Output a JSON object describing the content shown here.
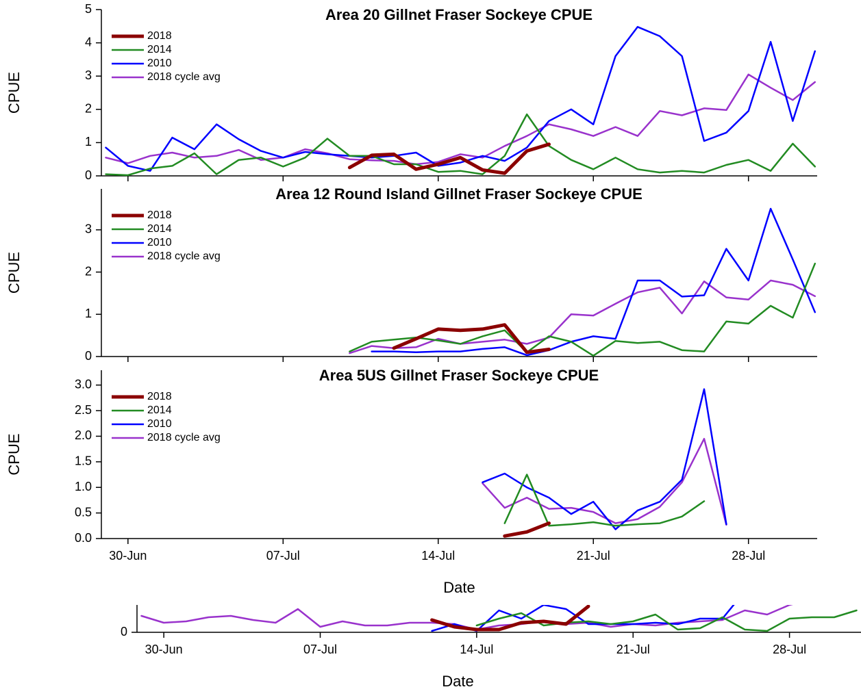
{
  "chart_data": [
    {
      "type": "line",
      "title": "Area 20 Gillnet Fraser Sockeye CPUE",
      "ylabel": "CPUE",
      "legend": "upper left",
      "x": [
        180,
        181,
        182,
        183,
        184,
        185,
        186,
        187,
        188,
        189,
        190,
        191,
        192,
        193,
        194,
        195,
        196,
        197,
        198,
        199,
        200,
        201,
        202,
        203,
        204,
        205,
        206,
        207,
        208,
        209,
        210,
        211,
        212
      ],
      "xlim": [
        179.8,
        212.1
      ],
      "xticks": [
        181,
        188,
        195,
        202,
        209
      ],
      "ylim": [
        0,
        5
      ],
      "yticks": [
        0,
        1,
        2,
        3,
        4,
        5
      ],
      "series": [
        {
          "name": "2018",
          "color": "#8b0000",
          "linewidth": 5,
          "values": [
            null,
            null,
            null,
            null,
            null,
            null,
            null,
            null,
            null,
            null,
            null,
            0.25,
            0.62,
            0.65,
            0.2,
            0.35,
            0.55,
            0.18,
            0.08,
            0.75,
            0.95,
            null,
            null,
            null,
            null,
            null,
            null,
            null,
            null,
            null,
            null,
            null,
            null
          ]
        },
        {
          "name": "2014",
          "color": "#228b22",
          "linewidth": 2.5,
          "values": [
            0.05,
            0.02,
            0.22,
            0.3,
            0.68,
            0.05,
            0.48,
            0.55,
            0.28,
            0.55,
            1.12,
            0.6,
            0.6,
            0.35,
            0.35,
            0.12,
            0.15,
            0.05,
            0.6,
            1.85,
            0.9,
            0.48,
            0.2,
            0.55,
            0.2,
            0.1,
            0.15,
            0.1,
            0.33,
            0.48,
            0.15,
            0.97,
            0.28
          ]
        },
        {
          "name": "2010",
          "color": "#0000ff",
          "linewidth": 2.5,
          "values": [
            0.85,
            0.3,
            0.15,
            1.15,
            0.8,
            1.55,
            1.1,
            0.75,
            0.55,
            0.72,
            0.65,
            0.6,
            0.55,
            0.6,
            0.7,
            0.3,
            0.4,
            0.6,
            0.45,
            0.85,
            1.65,
            2.0,
            1.55,
            3.6,
            4.48,
            4.2,
            3.6,
            1.05,
            1.3,
            1.95,
            4.03,
            1.65,
            3.75
          ]
        },
        {
          "name": "2018 cycle avg",
          "color": "#9932cc",
          "linewidth": 2.5,
          "values": [
            0.55,
            0.38,
            0.6,
            0.7,
            0.55,
            0.6,
            0.78,
            0.48,
            0.55,
            0.8,
            0.68,
            0.5,
            0.47,
            0.45,
            0.35,
            0.42,
            0.65,
            0.55,
            0.9,
            1.2,
            1.55,
            1.4,
            1.2,
            1.47,
            1.2,
            1.95,
            1.82,
            2.03,
            1.98,
            3.05,
            2.65,
            2.28,
            2.82
          ]
        }
      ]
    },
    {
      "type": "line",
      "title": "Area 12 Round Island Gillnet Fraser Sockeye CPUE",
      "ylabel": "CPUE",
      "legend": "upper left",
      "x": [
        180,
        181,
        182,
        183,
        184,
        185,
        186,
        187,
        188,
        189,
        190,
        191,
        192,
        193,
        194,
        195,
        196,
        197,
        198,
        199,
        200,
        201,
        202,
        203,
        204,
        205,
        206,
        207,
        208,
        209,
        210,
        211,
        212
      ],
      "xlim": [
        179.8,
        212.1
      ],
      "xticks": [
        181,
        188,
        195,
        202,
        209
      ],
      "ylim": [
        0,
        3.97
      ],
      "yticks": [
        0,
        1,
        2,
        3
      ],
      "series": [
        {
          "name": "2018",
          "color": "#8b0000",
          "linewidth": 5,
          "values": [
            null,
            null,
            null,
            null,
            null,
            null,
            null,
            null,
            null,
            null,
            null,
            null,
            null,
            0.2,
            0.42,
            0.65,
            0.62,
            0.65,
            0.75,
            0.1,
            0.17,
            null,
            null,
            null,
            null,
            null,
            null,
            null,
            null,
            null,
            null,
            null,
            null
          ]
        },
        {
          "name": "2014",
          "color": "#228b22",
          "linewidth": 2.5,
          "values": [
            null,
            null,
            null,
            null,
            null,
            null,
            null,
            null,
            null,
            null,
            null,
            0.12,
            0.35,
            0.4,
            0.45,
            0.38,
            0.3,
            0.48,
            0.62,
            0.1,
            0.48,
            0.35,
            0.02,
            0.37,
            0.32,
            0.35,
            0.15,
            0.12,
            0.83,
            0.78,
            1.2,
            0.92,
            2.2
          ]
        },
        {
          "name": "2010",
          "color": "#0000ff",
          "linewidth": 2.5,
          "values": [
            null,
            null,
            null,
            null,
            null,
            null,
            null,
            null,
            null,
            null,
            null,
            null,
            0.12,
            0.12,
            0.1,
            0.12,
            0.12,
            0.18,
            0.22,
            0.03,
            0.15,
            0.35,
            0.48,
            0.42,
            1.8,
            1.8,
            1.42,
            1.45,
            2.55,
            1.8,
            3.5,
            2.3,
            1.05
          ]
        },
        {
          "name": "2018 cycle avg",
          "color": "#9932cc",
          "linewidth": 2.5,
          "values": [
            null,
            null,
            null,
            null,
            null,
            null,
            null,
            null,
            null,
            null,
            null,
            0.08,
            0.25,
            0.2,
            0.22,
            0.42,
            0.3,
            0.35,
            0.4,
            0.3,
            0.45,
            1.0,
            0.97,
            1.25,
            1.52,
            1.63,
            1.02,
            1.78,
            1.4,
            1.35,
            1.8,
            1.7,
            1.43
          ]
        }
      ]
    },
    {
      "type": "line",
      "title": "Area 5US Gillnet Fraser Sockeye CPUE",
      "ylabel": "CPUE",
      "xlabel": "Date",
      "legend": "upper left",
      "x": [
        180,
        181,
        182,
        183,
        184,
        185,
        186,
        187,
        188,
        189,
        190,
        191,
        192,
        193,
        194,
        195,
        196,
        197,
        198,
        199,
        200,
        201,
        202,
        203,
        204,
        205,
        206,
        207,
        208,
        209,
        210,
        211,
        212
      ],
      "xlim": [
        179.8,
        212.1
      ],
      "xticks": [
        {
          "value": 181,
          "label": "30-Jun"
        },
        {
          "value": 188,
          "label": "07-Jul"
        },
        {
          "value": 195,
          "label": "14-Jul"
        },
        {
          "value": 202,
          "label": "21-Jul"
        },
        {
          "value": 209,
          "label": "28-Jul"
        }
      ],
      "ylim": [
        0,
        3.29
      ],
      "yticks": [
        {
          "value": 0,
          "label": "0.0"
        },
        0.5,
        {
          "value": 1,
          "label": "1.0"
        },
        1.5,
        {
          "value": 2,
          "label": "2.0"
        },
        2.5,
        {
          "value": 3,
          "label": "3.0"
        }
      ],
      "series": [
        {
          "name": "2018",
          "color": "#8b0000",
          "linewidth": 5,
          "values": [
            null,
            null,
            null,
            null,
            null,
            null,
            null,
            null,
            null,
            null,
            null,
            null,
            null,
            null,
            null,
            null,
            null,
            null,
            0.05,
            0.13,
            0.3,
            null,
            null,
            null,
            null,
            null,
            null,
            null,
            null,
            null,
            null,
            null,
            null
          ]
        },
        {
          "name": "2014",
          "color": "#228b22",
          "linewidth": 2.5,
          "values": [
            null,
            null,
            null,
            null,
            null,
            null,
            null,
            null,
            null,
            null,
            null,
            null,
            null,
            null,
            null,
            null,
            null,
            null,
            0.3,
            1.25,
            0.25,
            0.28,
            0.32,
            0.25,
            0.28,
            0.3,
            0.43,
            0.73,
            null,
            null,
            null,
            null,
            null
          ]
        },
        {
          "name": "2010",
          "color": "#0000ff",
          "linewidth": 2.5,
          "values": [
            null,
            null,
            null,
            null,
            null,
            null,
            null,
            null,
            null,
            null,
            null,
            null,
            null,
            null,
            null,
            null,
            null,
            1.1,
            1.27,
            1.0,
            0.8,
            0.48,
            0.72,
            0.18,
            0.55,
            0.72,
            1.15,
            2.92,
            0.28,
            null,
            null,
            null,
            null
          ]
        },
        {
          "name": "2018 cycle avg",
          "color": "#9932cc",
          "linewidth": 2.5,
          "values": [
            null,
            null,
            null,
            null,
            null,
            null,
            null,
            null,
            null,
            null,
            null,
            null,
            null,
            null,
            null,
            null,
            null,
            1.08,
            0.6,
            0.8,
            0.58,
            0.6,
            0.52,
            0.3,
            0.38,
            0.62,
            1.1,
            1.95,
            0.27,
            null,
            null,
            null,
            null
          ]
        }
      ]
    },
    {
      "type": "line",
      "xlabel": "Date",
      "x": [
        180,
        181,
        182,
        183,
        184,
        185,
        186,
        187,
        188,
        189,
        190,
        191,
        192,
        193,
        194,
        195,
        196,
        197,
        198,
        199,
        200,
        201,
        202,
        203,
        204,
        205,
        206,
        207,
        208,
        209,
        210,
        211,
        212
      ],
      "xlim": [
        179.8,
        212.2
      ],
      "xticks": [
        {
          "value": 181,
          "label": "30-Jun"
        },
        {
          "value": 188,
          "label": "07-Jul"
        },
        {
          "value": 195,
          "label": "14-Jul"
        },
        {
          "value": 202,
          "label": "21-Jul"
        },
        {
          "value": 209,
          "label": "28-Jul"
        }
      ],
      "ylim": [
        0,
        1
      ],
      "yticks": [
        0
      ],
      "series": [
        {
          "color": "#8b0000",
          "linewidth": 5,
          "values": [
            null,
            null,
            null,
            null,
            null,
            null,
            null,
            null,
            null,
            null,
            null,
            null,
            null,
            0.45,
            0.2,
            0.1,
            0.1,
            0.35,
            0.4,
            0.3,
            0.95,
            null,
            null,
            null,
            null,
            null,
            null,
            null,
            null,
            null,
            null,
            null,
            null
          ]
        },
        {
          "color": "#228b22",
          "linewidth": 2.5,
          "values": [
            null,
            null,
            null,
            null,
            null,
            null,
            null,
            null,
            null,
            null,
            null,
            null,
            null,
            null,
            null,
            0.25,
            0.5,
            0.7,
            0.25,
            0.35,
            0.4,
            0.3,
            0.4,
            0.65,
            0.1,
            0.15,
            0.55,
            0.1,
            0.05,
            0.5,
            0.55,
            0.55,
            0.8
          ]
        },
        {
          "color": "#0000ff",
          "linewidth": 2.5,
          "values": [
            null,
            null,
            null,
            null,
            null,
            null,
            null,
            null,
            null,
            null,
            null,
            null,
            null,
            0.05,
            0.3,
            0.05,
            0.8,
            0.5,
            1.0,
            0.85,
            0.3,
            0.3,
            0.3,
            0.35,
            0.3,
            0.5,
            0.5,
            1.5,
            null,
            null,
            null,
            null,
            null
          ]
        },
        {
          "color": "#9932cc",
          "linewidth": 2.5,
          "values": [
            0.6,
            0.35,
            0.4,
            0.55,
            0.6,
            0.45,
            0.35,
            0.85,
            0.2,
            0.4,
            0.25,
            0.25,
            0.35,
            0.35,
            0.3,
            0.1,
            0.25,
            0.3,
            0.4,
            0.3,
            0.35,
            0.2,
            0.3,
            0.25,
            0.35,
            0.4,
            0.45,
            0.8,
            0.65,
            1.0,
            1.2,
            null,
            null
          ]
        }
      ]
    }
  ]
}
